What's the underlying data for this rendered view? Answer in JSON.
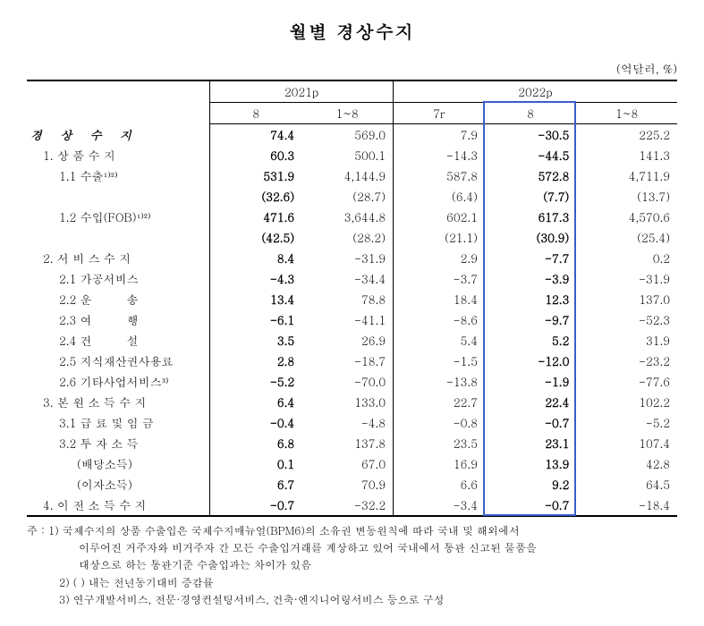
{
  "title": "월별 경상수지",
  "unit": "(억달러, %)",
  "header": {
    "year1": "2021p",
    "year2": "2022p",
    "sub": [
      "8",
      "1~8",
      "7r",
      "8",
      "1~8"
    ]
  },
  "rows": [
    {
      "label": "경 상 수 지",
      "cls": "italic-label",
      "indent": 0,
      "vals": [
        "74.4",
        "569.0",
        "7.9",
        "-30.5",
        "225.2"
      ],
      "bold": [
        true,
        false,
        false,
        true,
        false
      ]
    },
    {
      "label": "1. 상 품 수 지",
      "cls": "",
      "indent": 1,
      "vals": [
        "60.3",
        "500.1",
        "-14.3",
        "-44.5",
        "141.3"
      ],
      "bold": [
        true,
        false,
        false,
        true,
        false
      ]
    },
    {
      "label": "1.1 수출¹⁾²⁾",
      "cls": "",
      "indent": 2,
      "vals": [
        "531.9",
        "4,144.9",
        "587.8",
        "572.8",
        "4,711.9"
      ],
      "bold": [
        true,
        false,
        false,
        true,
        false
      ]
    },
    {
      "label": "",
      "cls": "",
      "indent": 2,
      "vals": [
        "(32.6)",
        "(28.7)",
        "(6.4)",
        "(7.7)",
        "(13.7)"
      ],
      "bold": [
        true,
        false,
        false,
        true,
        false
      ]
    },
    {
      "label": "1.2 수입(FOB)¹⁾²⁾",
      "cls": "",
      "indent": 2,
      "vals": [
        "471.6",
        "3,644.8",
        "602.1",
        "617.3",
        "4,570.6"
      ],
      "bold": [
        true,
        false,
        false,
        true,
        false
      ]
    },
    {
      "label": "",
      "cls": "",
      "indent": 2,
      "vals": [
        "(42.5)",
        "(28.2)",
        "(21.1)",
        "(30.9)",
        "(25.4)"
      ],
      "bold": [
        true,
        false,
        false,
        true,
        false
      ]
    },
    {
      "label": "2. 서 비 스 수 지",
      "cls": "",
      "indent": 1,
      "vals": [
        "8.4",
        "-31.9",
        "2.9",
        "-7.7",
        "0.2"
      ],
      "bold": [
        true,
        false,
        false,
        true,
        false
      ]
    },
    {
      "label": "2.1 가공서비스",
      "cls": "",
      "indent": 2,
      "vals": [
        "-4.3",
        "-34.4",
        "-3.7",
        "-3.9",
        "-31.9"
      ],
      "bold": [
        true,
        false,
        false,
        true,
        false
      ]
    },
    {
      "label": "2.2 운　　　송",
      "cls": "",
      "indent": 2,
      "vals": [
        "13.4",
        "78.8",
        "18.4",
        "12.3",
        "137.0"
      ],
      "bold": [
        true,
        false,
        false,
        true,
        false
      ]
    },
    {
      "label": "2.3 여　　　행",
      "cls": "",
      "indent": 2,
      "vals": [
        "-6.1",
        "-41.1",
        "-8.6",
        "-9.7",
        "-52.3"
      ],
      "bold": [
        true,
        false,
        false,
        true,
        false
      ]
    },
    {
      "label": "2.4 건　　　설",
      "cls": "",
      "indent": 2,
      "vals": [
        "3.5",
        "26.9",
        "5.4",
        "5.2",
        "31.9"
      ],
      "bold": [
        true,
        false,
        false,
        true,
        false
      ]
    },
    {
      "label": "2.5 지식재산권사용료",
      "cls": "",
      "indent": 2,
      "vals": [
        "2.8",
        "-18.7",
        "-1.5",
        "-12.0",
        "-23.2"
      ],
      "bold": [
        true,
        false,
        false,
        true,
        false
      ]
    },
    {
      "label": "2.6 기타사업서비스³⁾",
      "cls": "",
      "indent": 2,
      "vals": [
        "-5.2",
        "-70.0",
        "-13.8",
        "-1.9",
        "-77.6"
      ],
      "bold": [
        true,
        false,
        false,
        true,
        false
      ]
    },
    {
      "label": "3. 본 원 소 득 수 지",
      "cls": "",
      "indent": 1,
      "vals": [
        "6.4",
        "133.0",
        "22.7",
        "22.4",
        "102.2"
      ],
      "bold": [
        true,
        false,
        false,
        true,
        false
      ]
    },
    {
      "label": "3.1 급 료 및 임 금",
      "cls": "",
      "indent": 2,
      "vals": [
        "-0.4",
        "-4.8",
        "-0.8",
        "-0.7",
        "-5.2"
      ],
      "bold": [
        true,
        false,
        false,
        true,
        false
      ]
    },
    {
      "label": "3.2 투 자 소 득",
      "cls": "",
      "indent": 2,
      "vals": [
        "6.8",
        "137.8",
        "23.5",
        "23.1",
        "107.4"
      ],
      "bold": [
        true,
        false,
        false,
        true,
        false
      ]
    },
    {
      "label": "(배당소득)",
      "cls": "",
      "indent": 3,
      "vals": [
        "0.1",
        "67.0",
        "16.9",
        "13.9",
        "42.8"
      ],
      "bold": [
        true,
        false,
        false,
        true,
        false
      ]
    },
    {
      "label": "(이자소득)",
      "cls": "",
      "indent": 3,
      "vals": [
        "6.7",
        "70.9",
        "6.6",
        "9.2",
        "64.5"
      ],
      "bold": [
        true,
        false,
        false,
        true,
        false
      ]
    },
    {
      "label": "4. 이 전 소 득 수 지",
      "cls": "",
      "indent": 1,
      "vals": [
        "-0.7",
        "-32.2",
        "-3.4",
        "-0.7",
        "-18.4"
      ],
      "bold": [
        true,
        false,
        false,
        true,
        false
      ]
    }
  ],
  "footnotes": {
    "prefix": "주 :",
    "n1a": "1) 국제수지의 상품 수출입은 국제수지매뉴얼(BPM6)의 소유권 변동원칙에 따라 국내 및 해외에서",
    "n1b": "이루어진 거주자와 비거주자 간 모든 수출입거래를 계상하고 있어 국내에서 통관 신고된 물품을",
    "n1c": "대상으로 하는 통관기준 수출입과는 차이가 있음",
    "n2": "2) ( ) 내는 전년동기대비 증감률",
    "n3": "3) 연구개발서비스, 전문·경영컨설팅서비스, 건축·엔지니어링서비스 등으로 구성"
  },
  "highlight": {
    "color": "#3b5dc9"
  }
}
